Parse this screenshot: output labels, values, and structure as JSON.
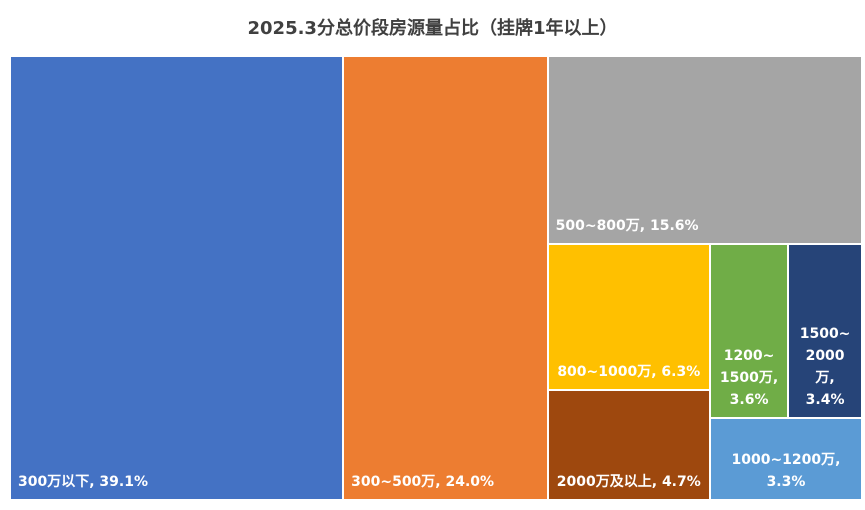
{
  "chart_data": {
    "type": "treemap",
    "title": "2025.3分总价段房源量占比（挂牌1年以上）",
    "values": [
      39.1,
      24.0,
      15.6,
      6.3,
      4.7,
      3.6,
      3.4,
      3.3
    ],
    "value_labels": [
      "300万以下, 39.1%",
      "300~500万, 24.0%",
      "500~800万, 15.6%",
      "800~1000万, 6.3%",
      "2000万及以上, 4.7%",
      "1200~ 1500万, 3.6%",
      "1500~ 2000万, 3.4%",
      "1000~1200万, 3.3%"
    ],
    "colors": [
      "#4472c4",
      "#ed7d31",
      "#a5a5a5",
      "#ffc000",
      "#9e480e",
      "#70ad47",
      "#264478",
      "#5b9bd5"
    ]
  }
}
